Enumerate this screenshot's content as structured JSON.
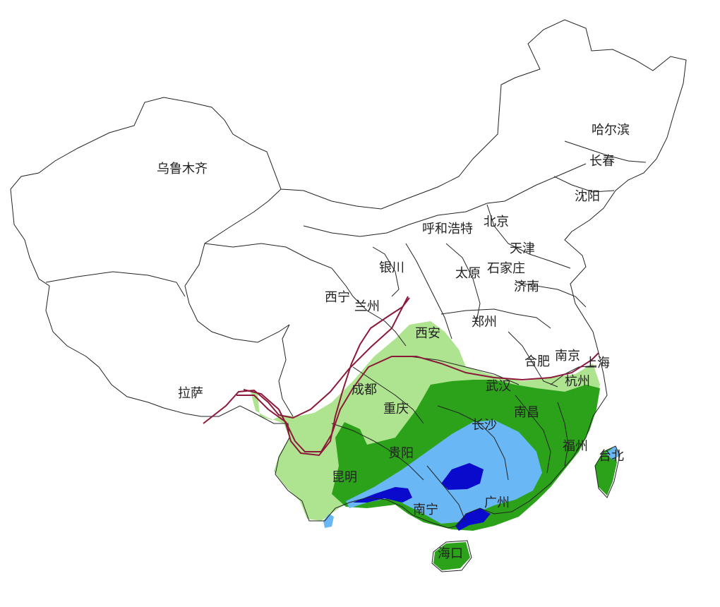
{
  "colors": {
    "background": "#ffffff",
    "boundary": "#222222",
    "rain_light": "#aee38f",
    "rain_moderate": "#2ba21a",
    "rain_heavy": "#6ab7f5",
    "rain_storm": "#0a0acc",
    "front_line": "#8b1a3a"
  },
  "cities": [
    {
      "id": "urumqi",
      "name": "乌鲁木齐"
    },
    {
      "id": "harbin",
      "name": "哈尔滨"
    },
    {
      "id": "changchun",
      "name": "长春"
    },
    {
      "id": "shenyang",
      "name": "沈阳"
    },
    {
      "id": "hohhot",
      "name": "呼和浩特"
    },
    {
      "id": "beijing",
      "name": "北京"
    },
    {
      "id": "tianjin",
      "name": "天津"
    },
    {
      "id": "yinchuan",
      "name": "银川"
    },
    {
      "id": "taiyuan",
      "name": "太原"
    },
    {
      "id": "shijiazhuang",
      "name": "石家庄"
    },
    {
      "id": "jinan",
      "name": "济南"
    },
    {
      "id": "xining",
      "name": "西宁"
    },
    {
      "id": "lanzhou",
      "name": "兰州"
    },
    {
      "id": "zhengzhou",
      "name": "郑州"
    },
    {
      "id": "xian",
      "name": "西安"
    },
    {
      "id": "hefei",
      "name": "合肥"
    },
    {
      "id": "nanjing",
      "name": "南京"
    },
    {
      "id": "shanghai",
      "name": "上海"
    },
    {
      "id": "lhasa",
      "name": "拉萨"
    },
    {
      "id": "chengdu",
      "name": "成都"
    },
    {
      "id": "wuhan",
      "name": "武汉"
    },
    {
      "id": "hangzhou",
      "name": "杭州"
    },
    {
      "id": "chongqing",
      "name": "重庆"
    },
    {
      "id": "nanchang",
      "name": "南昌"
    },
    {
      "id": "changsha",
      "name": "长沙"
    },
    {
      "id": "guiyang",
      "name": "贵阳"
    },
    {
      "id": "fuzhou",
      "name": "福州"
    },
    {
      "id": "taibei",
      "name": "台北"
    },
    {
      "id": "kunming",
      "name": "昆明"
    },
    {
      "id": "nanning",
      "name": "南宁"
    },
    {
      "id": "guangzhou",
      "name": "广州"
    },
    {
      "id": "haikou",
      "name": "海口"
    }
  ]
}
